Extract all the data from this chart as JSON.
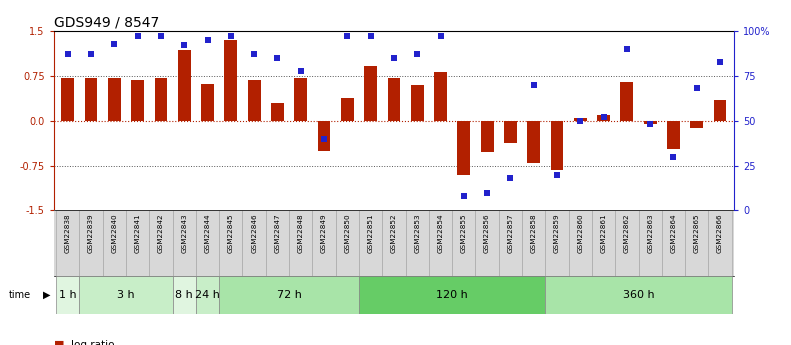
{
  "title": "GDS949 / 8547",
  "samples": [
    "GSM22838",
    "GSM22839",
    "GSM22840",
    "GSM22841",
    "GSM22842",
    "GSM22843",
    "GSM22844",
    "GSM22845",
    "GSM22846",
    "GSM22847",
    "GSM22848",
    "GSM22849",
    "GSM22850",
    "GSM22851",
    "GSM22852",
    "GSM22853",
    "GSM22854",
    "GSM22855",
    "GSM22856",
    "GSM22857",
    "GSM22858",
    "GSM22859",
    "GSM22860",
    "GSM22861",
    "GSM22862",
    "GSM22863",
    "GSM22864",
    "GSM22865",
    "GSM22866"
  ],
  "log_ratio": [
    0.72,
    0.72,
    0.72,
    0.68,
    0.72,
    1.18,
    0.62,
    1.35,
    0.68,
    0.3,
    0.72,
    -0.5,
    0.38,
    0.92,
    0.72,
    0.6,
    0.82,
    -0.9,
    -0.52,
    -0.38,
    -0.7,
    -0.82,
    0.05,
    0.1,
    0.65,
    -0.05,
    -0.48,
    -0.12,
    0.35
  ],
  "percentile_rank": [
    87,
    87,
    93,
    97,
    97,
    92,
    95,
    97,
    87,
    85,
    78,
    40,
    97,
    97,
    85,
    87,
    97,
    8,
    10,
    18,
    70,
    20,
    50,
    52,
    90,
    48,
    30,
    68,
    83
  ],
  "time_groups": [
    {
      "label": "1 h",
      "start": 0,
      "end": 1,
      "color": "#e0f5e0"
    },
    {
      "label": "3 h",
      "start": 1,
      "end": 5,
      "color": "#c8eec8"
    },
    {
      "label": "8 h",
      "start": 5,
      "end": 6,
      "color": "#e0f5e0"
    },
    {
      "label": "24 h",
      "start": 6,
      "end": 7,
      "color": "#c8eec8"
    },
    {
      "label": "72 h",
      "start": 7,
      "end": 13,
      "color": "#a8e4a8"
    },
    {
      "label": "120 h",
      "start": 13,
      "end": 21,
      "color": "#66cc66"
    },
    {
      "label": "360 h",
      "start": 21,
      "end": 29,
      "color": "#a8e4a8"
    }
  ],
  "bar_color": "#b22000",
  "dot_color": "#2222cc",
  "ylim_left": [
    -1.5,
    1.5
  ],
  "ylim_right": [
    0,
    100
  ],
  "yticks_left": [
    -1.5,
    -0.75,
    0.0,
    0.75,
    1.5
  ],
  "yticks_right": [
    0,
    25,
    50,
    75,
    100
  ],
  "ytick_labels_right": [
    "0",
    "25",
    "50",
    "75",
    "100%"
  ],
  "label_bg_color": "#d8d8d8",
  "background_color": "#ffffff"
}
